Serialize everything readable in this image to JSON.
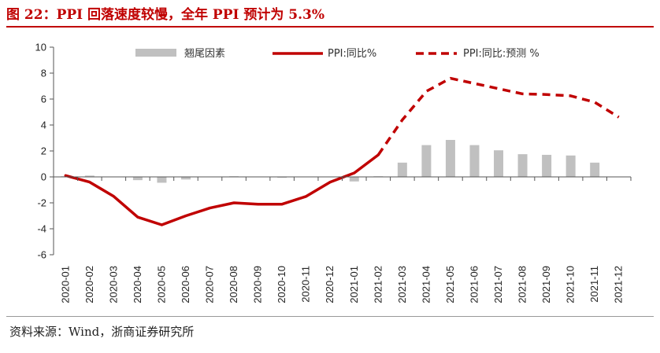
{
  "header": {
    "title": "图 22：PPI 回落速度较慢，全年 PPI 预计为 5.3%",
    "source": "资料来源：Wind，浙商证券研究所"
  },
  "colors": {
    "accent": "#c00000",
    "bar": "#c0c0c0",
    "axis": "#555555"
  },
  "chart_data": {
    "type": "bar+line",
    "categories": [
      "2020-01",
      "2020-02",
      "2020-03",
      "2020-04",
      "2020-05",
      "2020-06",
      "2020-07",
      "2020-08",
      "2020-09",
      "2020-10",
      "2020-11",
      "2020-12",
      "2021-01",
      "2021-02",
      "2021-03",
      "2021-04",
      "2021-05",
      "2021-06",
      "2021-07",
      "2021-08",
      "2021-09",
      "2021-10",
      "2021-11",
      "2021-12"
    ],
    "ylim": [
      -6,
      10
    ],
    "yticks": [
      -6,
      -4,
      -2,
      0,
      2,
      4,
      6,
      8,
      10
    ],
    "legend_position": "top",
    "series": [
      {
        "name": "翘尾因素",
        "kind": "bar",
        "values": [
          0.05,
          0.1,
          0,
          -0.25,
          -0.45,
          -0.2,
          0,
          0.05,
          0,
          -0.05,
          0,
          0,
          -0.35,
          0.05,
          1.1,
          2.45,
          2.85,
          2.45,
          2.05,
          1.75,
          1.7,
          1.65,
          1.1,
          null
        ]
      },
      {
        "name": "PPI:同比%",
        "kind": "line",
        "values": [
          0.1,
          -0.4,
          -1.5,
          -3.1,
          -3.7,
          -3.0,
          -2.4,
          -2.0,
          -2.1,
          -2.1,
          -1.5,
          -0.4,
          0.3,
          1.7,
          null,
          null,
          null,
          null,
          null,
          null,
          null,
          null,
          null,
          null
        ]
      },
      {
        "name": "PPI:同比:预测 %",
        "kind": "dashed-line",
        "values": [
          null,
          null,
          null,
          null,
          null,
          null,
          null,
          null,
          null,
          null,
          null,
          null,
          null,
          1.7,
          4.4,
          6.6,
          7.6,
          7.2,
          6.8,
          6.4,
          6.35,
          6.25,
          5.75,
          4.6
        ]
      }
    ]
  }
}
